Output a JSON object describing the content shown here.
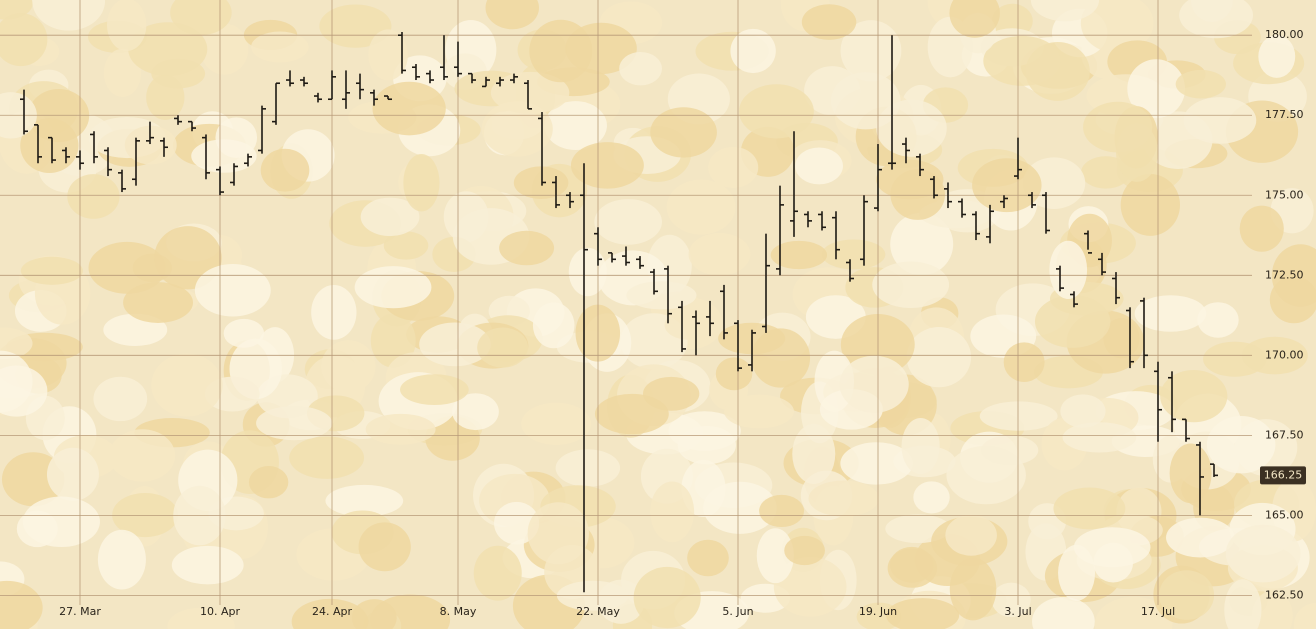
{
  "chart_data": {
    "type": "ohlc",
    "categories": [
      null,
      null,
      null,
      null,
      "27. Mar",
      null,
      null,
      null,
      null,
      null,
      null,
      null,
      null,
      null,
      "10. Apr",
      null,
      null,
      null,
      null,
      null,
      null,
      null,
      "24. Apr",
      null,
      null,
      null,
      null,
      null,
      null,
      null,
      null,
      "8. May",
      null,
      null,
      null,
      null,
      null,
      null,
      null,
      null,
      null,
      "22. May",
      null,
      null,
      null,
      null,
      null,
      null,
      null,
      null,
      null,
      "5. Jun",
      null,
      null,
      null,
      null,
      null,
      null,
      null,
      null,
      null,
      "19. Jun",
      null,
      null,
      null,
      null,
      null,
      null,
      null,
      null,
      null,
      "3. Jul",
      null,
      null,
      null,
      null,
      null,
      null,
      null,
      null,
      null,
      "17. Jul",
      null,
      null,
      null,
      null
    ],
    "open": [
      178.0,
      177.2,
      176.8,
      176.4,
      176.2,
      176.9,
      176.4,
      175.7,
      175.5,
      176.7,
      176.7,
      177.4,
      177.3,
      176.8,
      175.8,
      175.4,
      176.0,
      176.4,
      177.3,
      178.6,
      178.6,
      178.1,
      178.0,
      178.0,
      178.5,
      178.2,
      178.1,
      180.0,
      179.0,
      178.8,
      179.0,
      179.0,
      178.8,
      178.4,
      178.5,
      178.6,
      178.5,
      177.4,
      175.4,
      175.0,
      175.0,
      173.8,
      173.2,
      173.1,
      173.0,
      172.6,
      172.7,
      171.5,
      171.2,
      171.2,
      172.0,
      171.0,
      169.7,
      170.9,
      172.7,
      174.2,
      174.4,
      174.4,
      174.3,
      172.9,
      173.0,
      174.6,
      176.0,
      176.6,
      176.2,
      175.5,
      175.2,
      174.8,
      174.4,
      173.7,
      174.8,
      175.6,
      175.0,
      175.0,
      172.7,
      171.9,
      173.8,
      173.0,
      172.4,
      171.4,
      171.7,
      169.5,
      169.3,
      168.0,
      167.2,
      166.6
    ],
    "high": [
      178.3,
      177.2,
      176.8,
      176.5,
      176.4,
      177.0,
      176.5,
      175.8,
      176.8,
      177.3,
      176.8,
      177.5,
      177.3,
      176.9,
      175.9,
      176.0,
      176.3,
      177.8,
      178.5,
      178.9,
      178.7,
      178.2,
      178.9,
      178.9,
      178.8,
      178.3,
      178.1,
      180.1,
      179.1,
      178.9,
      180.0,
      179.8,
      178.8,
      178.7,
      178.7,
      178.8,
      178.6,
      177.6,
      175.6,
      175.1,
      176.0,
      174.0,
      173.2,
      173.4,
      173.1,
      172.7,
      172.8,
      171.7,
      171.4,
      171.7,
      172.2,
      171.1,
      170.8,
      173.8,
      175.3,
      177.0,
      174.5,
      174.5,
      174.5,
      173.0,
      175.0,
      176.6,
      180.0,
      176.8,
      176.3,
      175.6,
      175.4,
      174.9,
      174.5,
      174.7,
      175.0,
      176.8,
      175.1,
      175.1,
      172.8,
      172.0,
      173.9,
      173.2,
      172.6,
      171.5,
      171.8,
      169.8,
      169.5,
      168.0,
      167.3,
      166.6
    ],
    "low": [
      176.9,
      176.0,
      176.0,
      176.0,
      175.8,
      176.0,
      175.6,
      175.1,
      175.3,
      176.6,
      176.2,
      177.2,
      177.0,
      175.5,
      175.0,
      175.3,
      175.9,
      176.3,
      177.2,
      178.4,
      178.4,
      177.9,
      178.0,
      177.7,
      178.0,
      177.8,
      178.0,
      178.8,
      178.6,
      178.5,
      178.6,
      178.7,
      178.5,
      178.4,
      178.4,
      178.5,
      177.7,
      175.3,
      174.6,
      174.6,
      162.6,
      172.8,
      172.9,
      172.8,
      172.7,
      171.9,
      171.0,
      170.1,
      170.0,
      170.6,
      170.5,
      169.5,
      169.5,
      170.7,
      172.5,
      173.7,
      174.0,
      173.9,
      173.0,
      172.3,
      172.8,
      174.5,
      175.8,
      176.0,
      175.6,
      174.9,
      174.6,
      174.3,
      173.6,
      173.5,
      174.6,
      175.5,
      174.6,
      173.8,
      172.0,
      171.5,
      173.3,
      172.5,
      171.6,
      169.6,
      169.6,
      167.3,
      167.6,
      167.3,
      165.0,
      166.2
    ],
    "close": [
      177.0,
      176.2,
      176.1,
      176.2,
      176.0,
      176.2,
      175.8,
      175.2,
      176.7,
      176.8,
      176.5,
      177.3,
      177.1,
      175.7,
      175.1,
      175.9,
      176.2,
      177.7,
      178.5,
      178.5,
      178.5,
      178.0,
      178.7,
      178.2,
      178.3,
      178.0,
      178.0,
      178.9,
      178.7,
      178.6,
      178.7,
      178.8,
      178.6,
      178.6,
      178.6,
      178.7,
      177.7,
      175.4,
      174.7,
      174.8,
      173.3,
      173.0,
      173.0,
      172.9,
      172.8,
      172.0,
      171.3,
      170.2,
      171.0,
      171.0,
      170.7,
      169.6,
      170.7,
      172.8,
      174.7,
      174.5,
      174.2,
      174.0,
      173.3,
      172.4,
      174.8,
      175.8,
      176.0,
      176.4,
      175.8,
      175.0,
      174.8,
      174.4,
      173.8,
      174.5,
      174.9,
      175.8,
      174.7,
      173.9,
      172.1,
      171.6,
      173.2,
      172.6,
      171.8,
      169.8,
      170.0,
      168.3,
      168.0,
      167.4,
      166.2,
      166.25
    ],
    "color": "#1e1a14",
    "ylim": [
      162.2,
      181.1
    ],
    "yticks": [
      {
        "value": 162.5,
        "label": "162.50"
      },
      {
        "value": 165,
        "label": "165.00"
      },
      {
        "value": 167.5,
        "label": "167.50"
      },
      {
        "value": 170,
        "label": "170.00"
      },
      {
        "value": 172.5,
        "label": "172.50"
      },
      {
        "value": 175,
        "label": "175.00"
      },
      {
        "value": 177.5,
        "label": "177.50"
      },
      {
        "value": 180,
        "label": "180.00"
      }
    ],
    "grid": true,
    "last_price": 166.25
  }
}
